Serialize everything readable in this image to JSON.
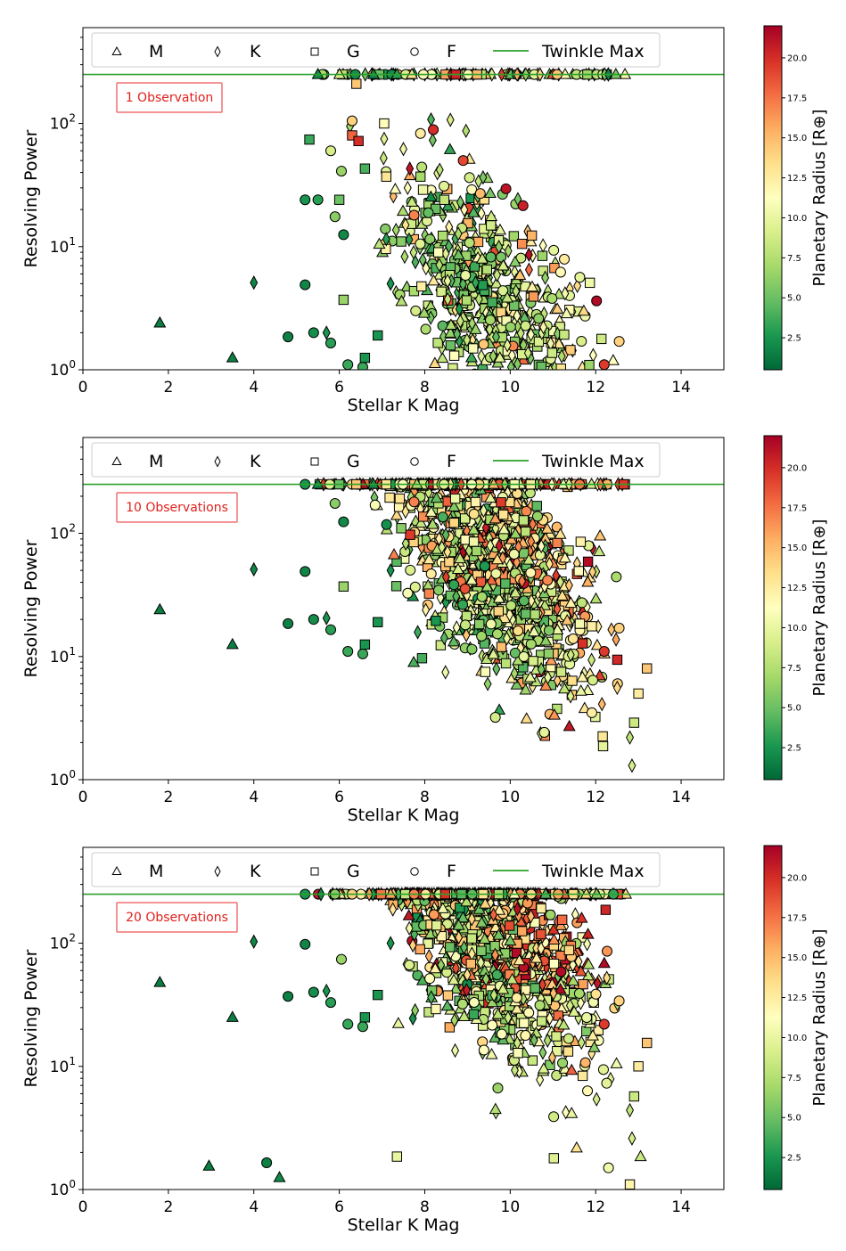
{
  "chart_data": [
    {
      "type": "scatter",
      "annotation": "1 Observation",
      "xlabel": "Stellar K Mag",
      "ylabel": "Resolving Power",
      "xlim": [
        0,
        15
      ],
      "ylim": [
        1,
        600
      ],
      "y_scale": "log",
      "x_ticks": [
        "0",
        "2",
        "4",
        "6",
        "8",
        "10",
        "12",
        "14"
      ],
      "y_ticks": [
        "10^0",
        "10^1",
        "10^2"
      ],
      "grid": false,
      "legend": {
        "placement": "top",
        "entries": [
          {
            "label": "M",
            "marker": "triangle"
          },
          {
            "label": "K",
            "marker": "diamond"
          },
          {
            "label": "G",
            "marker": "square"
          },
          {
            "label": "F",
            "marker": "circle"
          },
          {
            "label": "Twinkle Max",
            "marker": "line",
            "color": "#2ca02c"
          }
        ]
      },
      "reference_line": {
        "label": "Twinkle Max",
        "y": 250,
        "color": "#2ca02c"
      },
      "colorbar": {
        "label": "Planetary Radius [R⊕]",
        "cmap": "RdYlGn_r",
        "range": [
          0.5,
          22
        ],
        "ticks": [
          "2.5",
          "5.0",
          "7.5",
          "10.0",
          "12.5",
          "15.0",
          "17.5",
          "20.0"
        ]
      },
      "points": [
        {
          "x": 1.8,
          "y": 2.4,
          "type": "M",
          "r": 1.5
        },
        {
          "x": 3.5,
          "y": 1.25,
          "type": "M",
          "r": 1.5
        },
        {
          "x": 4.0,
          "y": 5.1,
          "type": "K",
          "r": 1.8
        },
        {
          "x": 4.8,
          "y": 1.85,
          "type": "F",
          "r": 1.6
        },
        {
          "x": 5.2,
          "y": 4.9,
          "type": "F",
          "r": 1.8
        },
        {
          "x": 5.2,
          "y": 24.0,
          "type": "F",
          "r": 2.5
        },
        {
          "x": 5.4,
          "y": 2.0,
          "type": "F",
          "r": 2.2
        },
        {
          "x": 5.3,
          "y": 74.0,
          "type": "G",
          "r": 3.5
        },
        {
          "x": 5.5,
          "y": 24.0,
          "type": "F",
          "r": 3.0
        },
        {
          "x": 5.5,
          "y": 250,
          "type": "M",
          "r": 2.0
        },
        {
          "x": 5.7,
          "y": 2.0,
          "type": "K",
          "r": 2.5
        },
        {
          "x": 5.8,
          "y": 60.0,
          "type": "F",
          "r": 9.0
        },
        {
          "x": 5.8,
          "y": 1.65,
          "type": "F",
          "r": 3.0
        },
        {
          "x": 5.9,
          "y": 17.5,
          "type": "F",
          "r": 6.0
        },
        {
          "x": 6.0,
          "y": 24.0,
          "type": "G",
          "r": 5.0
        },
        {
          "x": 6.05,
          "y": 41.0,
          "type": "F",
          "r": 6.5
        },
        {
          "x": 6.1,
          "y": 12.5,
          "type": "F",
          "r": 2.0
        },
        {
          "x": 6.1,
          "y": 3.7,
          "type": "G",
          "r": 6.5
        },
        {
          "x": 6.2,
          "y": 1.1,
          "type": "F",
          "r": 3.5
        },
        {
          "x": 6.25,
          "y": 95.0,
          "type": "K",
          "r": 7.0
        },
        {
          "x": 6.3,
          "y": 105.0,
          "type": "F",
          "r": 14.0
        },
        {
          "x": 6.3,
          "y": 80.0,
          "type": "G",
          "r": 18.0
        },
        {
          "x": 6.4,
          "y": 210.0,
          "type": "G",
          "r": 14.5
        },
        {
          "x": 6.45,
          "y": 72.0,
          "type": "G",
          "r": 20.0
        },
        {
          "x": 6.55,
          "y": 1.05,
          "type": "F",
          "r": 3.5
        },
        {
          "x": 6.6,
          "y": 43.0,
          "type": "G",
          "r": 4.0
        },
        {
          "x": 6.6,
          "y": 1.25,
          "type": "G",
          "r": 2.5
        },
        {
          "x": 6.8,
          "y": 250,
          "type": "M",
          "r": 2.0
        },
        {
          "x": 6.9,
          "y": 1.9,
          "type": "G",
          "r": 2.5
        },
        {
          "x": 7.05,
          "y": 75.0,
          "type": "K",
          "r": 9.5
        },
        {
          "x": 7.05,
          "y": 100.0,
          "type": "G",
          "r": 11.5
        },
        {
          "x": 7.1,
          "y": 37.0,
          "type": "G",
          "r": 13.0
        },
        {
          "x": 7.1,
          "y": 11.5,
          "type": "K",
          "r": 3.0
        },
        {
          "x": 7.2,
          "y": 5.0,
          "type": "K",
          "r": 2.5
        },
        {
          "x": 7.35,
          "y": 250,
          "type": "M",
          "r": 3.0
        },
        {
          "x": 7.45,
          "y": 11.0,
          "type": "G",
          "r": 6.0
        },
        {
          "x": 7.5,
          "y": 62.0,
          "type": "K",
          "r": 10.5
        },
        {
          "x": 7.55,
          "y": 15.0,
          "type": "K",
          "r": 13.0
        },
        {
          "x": 7.6,
          "y": 30.0,
          "type": "K",
          "r": 11.0
        },
        {
          "x": 7.65,
          "y": 43.0,
          "type": "K",
          "r": 21.0
        },
        {
          "x": 7.7,
          "y": 23.0,
          "type": "M",
          "r": 8.5
        },
        {
          "x": 7.75,
          "y": 18.0,
          "type": "F",
          "r": 17.0
        },
        {
          "x": 7.9,
          "y": 37.0,
          "type": "G",
          "r": 7.0
        },
        {
          "x": 7.9,
          "y": 83.0,
          "type": "F",
          "r": 12.5
        },
        {
          "x": 8.2,
          "y": 89.0,
          "type": "F",
          "r": 20.0
        },
        {
          "x": 8.35,
          "y": 42.0,
          "type": "K",
          "r": 8.0
        },
        {
          "x": 8.45,
          "y": 31.0,
          "type": "F",
          "r": 9.5
        },
        {
          "x": 8.6,
          "y": 107.0,
          "type": "K",
          "r": 9.0
        },
        {
          "x": 8.9,
          "y": 50.0,
          "type": "F",
          "r": 19.0
        },
        {
          "x": 9.1,
          "y": 29.0,
          "type": "F",
          "r": 11.0
        },
        {
          "x": 9.3,
          "y": 27.0,
          "type": "F",
          "r": 15.0
        },
        {
          "x": 9.9,
          "y": 29.5,
          "type": "F",
          "r": 21.0
        },
        {
          "x": 10.3,
          "y": 21.5,
          "type": "F",
          "r": 20.5
        },
        {
          "x": 12.2,
          "y": 1.1,
          "type": "F",
          "r": 19.5
        },
        {
          "x": 12.55,
          "y": 1.7,
          "type": "F",
          "r": 14.0
        }
      ]
    },
    {
      "type": "scatter",
      "annotation": "10 Observations",
      "xlabel": "Stellar K Mag",
      "ylabel": "Resolving Power",
      "xlim": [
        0,
        15
      ],
      "ylim": [
        1,
        600
      ],
      "y_scale": "log",
      "x_ticks": [
        "0",
        "2",
        "4",
        "6",
        "8",
        "10",
        "12",
        "14"
      ],
      "y_ticks": [
        "10^0",
        "10^1",
        "10^2"
      ],
      "grid": false,
      "legend": {
        "placement": "top",
        "entries": [
          {
            "label": "M",
            "marker": "triangle"
          },
          {
            "label": "K",
            "marker": "diamond"
          },
          {
            "label": "G",
            "marker": "square"
          },
          {
            "label": "F",
            "marker": "circle"
          },
          {
            "label": "Twinkle Max",
            "marker": "line",
            "color": "#2ca02c"
          }
        ]
      },
      "reference_line": {
        "label": "Twinkle Max",
        "y": 250,
        "color": "#2ca02c"
      },
      "colorbar": {
        "label": "Planetary Radius [R⊕]",
        "cmap": "RdYlGn_r",
        "range": [
          0.5,
          22
        ],
        "ticks": [
          "2.5",
          "5.0",
          "7.5",
          "10.0",
          "12.5",
          "15.0",
          "17.5",
          "20.0"
        ]
      },
      "points": [
        {
          "x": 1.8,
          "y": 24.0,
          "type": "M",
          "r": 1.5
        },
        {
          "x": 3.5,
          "y": 12.5,
          "type": "M",
          "r": 1.5
        },
        {
          "x": 4.0,
          "y": 51.0,
          "type": "K",
          "r": 1.8
        },
        {
          "x": 4.8,
          "y": 18.5,
          "type": "F",
          "r": 1.6
        },
        {
          "x": 5.2,
          "y": 49.0,
          "type": "F",
          "r": 1.8
        },
        {
          "x": 5.2,
          "y": 250,
          "type": "F",
          "r": 2.5
        },
        {
          "x": 5.4,
          "y": 20.0,
          "type": "F",
          "r": 2.2
        },
        {
          "x": 5.5,
          "y": 250,
          "type": "M",
          "r": 2.0
        },
        {
          "x": 5.7,
          "y": 20.5,
          "type": "K",
          "r": 2.5
        },
        {
          "x": 5.8,
          "y": 16.5,
          "type": "F",
          "r": 3.0
        },
        {
          "x": 5.9,
          "y": 175.0,
          "type": "F",
          "r": 6.0
        },
        {
          "x": 6.0,
          "y": 250,
          "type": "G",
          "r": 5.0
        },
        {
          "x": 6.1,
          "y": 124.0,
          "type": "F",
          "r": 2.0
        },
        {
          "x": 6.1,
          "y": 37.0,
          "type": "G",
          "r": 6.5
        },
        {
          "x": 6.2,
          "y": 11.0,
          "type": "F",
          "r": 3.5
        },
        {
          "x": 6.3,
          "y": 250,
          "type": "F",
          "r": 14.0
        },
        {
          "x": 6.4,
          "y": 250,
          "type": "G",
          "r": 14.5
        },
        {
          "x": 6.55,
          "y": 10.5,
          "type": "F",
          "r": 3.5
        },
        {
          "x": 6.6,
          "y": 12.5,
          "type": "G",
          "r": 2.5
        },
        {
          "x": 6.8,
          "y": 250,
          "type": "M",
          "r": 2.0
        },
        {
          "x": 6.9,
          "y": 19.0,
          "type": "G",
          "r": 2.5
        },
        {
          "x": 7.1,
          "y": 250,
          "type": "G",
          "r": 13.0
        },
        {
          "x": 7.2,
          "y": 50.0,
          "type": "K",
          "r": 2.5
        },
        {
          "x": 7.45,
          "y": 110.0,
          "type": "G",
          "r": 6.0
        },
        {
          "x": 7.55,
          "y": 150.0,
          "type": "K",
          "r": 13.0
        },
        {
          "x": 7.75,
          "y": 180.0,
          "type": "F",
          "r": 17.0
        },
        {
          "x": 8.35,
          "y": 250,
          "type": "K",
          "r": 8.0
        },
        {
          "x": 8.45,
          "y": 250,
          "type": "F",
          "r": 9.5
        },
        {
          "x": 9.1,
          "y": 250,
          "type": "F",
          "r": 11.0
        },
        {
          "x": 12.2,
          "y": 11.0,
          "type": "F",
          "r": 19.5
        },
        {
          "x": 12.55,
          "y": 17.0,
          "type": "F",
          "r": 14.0
        },
        {
          "x": 12.8,
          "y": 2.2,
          "type": "K",
          "r": 8.0
        },
        {
          "x": 12.85,
          "y": 1.3,
          "type": "K",
          "r": 9.0
        },
        {
          "x": 13.0,
          "y": 5.0,
          "type": "G",
          "r": 12.5
        },
        {
          "x": 13.2,
          "y": 8.0,
          "type": "G",
          "r": 14.5
        },
        {
          "x": 12.9,
          "y": 2.9,
          "type": "G",
          "r": 8.5
        }
      ]
    },
    {
      "type": "scatter",
      "annotation": "20 Observations",
      "xlabel": "Stellar K Mag",
      "ylabel": "Resolving Power",
      "xlim": [
        0,
        15
      ],
      "ylim": [
        1,
        600
      ],
      "y_scale": "log",
      "x_ticks": [
        "0",
        "2",
        "4",
        "6",
        "8",
        "10",
        "12",
        "14"
      ],
      "y_ticks": [
        "10^0",
        "10^1",
        "10^2"
      ],
      "grid": false,
      "legend": {
        "placement": "top",
        "entries": [
          {
            "label": "M",
            "marker": "triangle"
          },
          {
            "label": "K",
            "marker": "diamond"
          },
          {
            "label": "G",
            "marker": "square"
          },
          {
            "label": "F",
            "marker": "circle"
          },
          {
            "label": "Twinkle Max",
            "marker": "line",
            "color": "#2ca02c"
          }
        ]
      },
      "reference_line": {
        "label": "Twinkle Max",
        "y": 250,
        "color": "#2ca02c"
      },
      "colorbar": {
        "label": "Planetary Radius [R⊕]",
        "cmap": "RdYlGn_r",
        "range": [
          0.5,
          22
        ],
        "ticks": [
          "2.5",
          "5.0",
          "7.5",
          "10.0",
          "12.5",
          "15.0",
          "17.5",
          "20.0"
        ]
      },
      "points": [
        {
          "x": 1.8,
          "y": 48.0,
          "type": "M",
          "r": 1.5
        },
        {
          "x": 2.95,
          "y": 1.55,
          "type": "M",
          "r": 1.5
        },
        {
          "x": 3.5,
          "y": 25.0,
          "type": "M",
          "r": 1.5
        },
        {
          "x": 4.0,
          "y": 103.0,
          "type": "K",
          "r": 1.8
        },
        {
          "x": 4.3,
          "y": 1.65,
          "type": "F",
          "r": 1.6
        },
        {
          "x": 4.6,
          "y": 1.25,
          "type": "M",
          "r": 2.0
        },
        {
          "x": 4.8,
          "y": 37.0,
          "type": "F",
          "r": 1.6
        },
        {
          "x": 5.2,
          "y": 98.0,
          "type": "F",
          "r": 1.8
        },
        {
          "x": 5.2,
          "y": 250,
          "type": "F",
          "r": 2.5
        },
        {
          "x": 5.4,
          "y": 40.0,
          "type": "F",
          "r": 2.2
        },
        {
          "x": 5.7,
          "y": 41.0,
          "type": "K",
          "r": 2.5
        },
        {
          "x": 5.8,
          "y": 33.0,
          "type": "F",
          "r": 3.0
        },
        {
          "x": 5.9,
          "y": 250,
          "type": "F",
          "r": 6.0
        },
        {
          "x": 6.05,
          "y": 74.0,
          "type": "F",
          "r": 6.5
        },
        {
          "x": 6.2,
          "y": 22.0,
          "type": "F",
          "r": 3.5
        },
        {
          "x": 6.3,
          "y": 250,
          "type": "F",
          "r": 14.0
        },
        {
          "x": 6.55,
          "y": 21.0,
          "type": "F",
          "r": 3.5
        },
        {
          "x": 6.6,
          "y": 25.0,
          "type": "G",
          "r": 2.5
        },
        {
          "x": 6.9,
          "y": 38.0,
          "type": "G",
          "r": 2.5
        },
        {
          "x": 7.2,
          "y": 100.0,
          "type": "K",
          "r": 2.5
        },
        {
          "x": 7.35,
          "y": 1.85,
          "type": "G",
          "r": 10.0
        },
        {
          "x": 7.75,
          "y": 250,
          "type": "F",
          "r": 17.0
        },
        {
          "x": 12.2,
          "y": 22.0,
          "type": "F",
          "r": 19.5
        },
        {
          "x": 12.55,
          "y": 34.0,
          "type": "F",
          "r": 14.0
        },
        {
          "x": 12.3,
          "y": 1.5,
          "type": "F",
          "r": 10.5
        },
        {
          "x": 12.8,
          "y": 4.4,
          "type": "K",
          "r": 8.0
        },
        {
          "x": 12.85,
          "y": 2.6,
          "type": "K",
          "r": 9.0
        },
        {
          "x": 13.0,
          "y": 10.0,
          "type": "G",
          "r": 12.5
        },
        {
          "x": 13.05,
          "y": 1.85,
          "type": "M",
          "r": 8.5
        },
        {
          "x": 13.2,
          "y": 15.5,
          "type": "G",
          "r": 14.5
        },
        {
          "x": 12.8,
          "y": 1.1,
          "type": "G",
          "r": 12.0
        },
        {
          "x": 12.9,
          "y": 5.7,
          "type": "G",
          "r": 8.5
        }
      ]
    }
  ]
}
